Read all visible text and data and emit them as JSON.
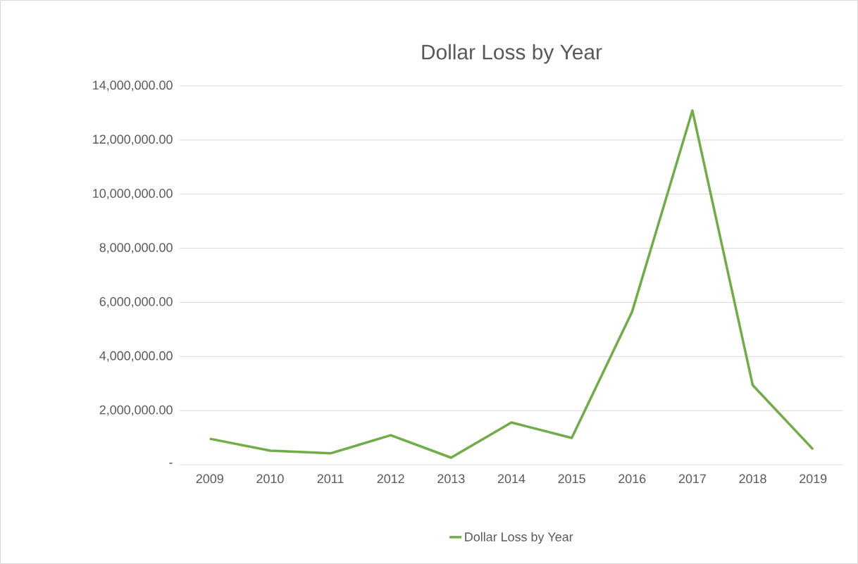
{
  "chart_data": {
    "type": "line",
    "title": "Dollar Loss by Year",
    "categories": [
      "2009",
      "2010",
      "2011",
      "2012",
      "2013",
      "2014",
      "2015",
      "2016",
      "2017",
      "2018",
      "2019"
    ],
    "series": [
      {
        "name": "Dollar Loss by Year",
        "color": "#70ad47",
        "values": [
          960000,
          520000,
          420000,
          1090000,
          260000,
          1560000,
          990000,
          5650000,
          13090000,
          2940000,
          570000
        ]
      }
    ],
    "ylim": [
      0,
      14000000
    ],
    "yticks": [
      {
        "value": 0,
        "label": "-"
      },
      {
        "value": 2000000,
        "label": "2,000,000.00"
      },
      {
        "value": 4000000,
        "label": "4,000,000.00"
      },
      {
        "value": 6000000,
        "label": "6,000,000.00"
      },
      {
        "value": 8000000,
        "label": "8,000,000.00"
      },
      {
        "value": 10000000,
        "label": "10,000,000.00"
      },
      {
        "value": 12000000,
        "label": "12,000,000.00"
      },
      {
        "value": 14000000,
        "label": "14,000,000.00"
      }
    ],
    "grid": "y",
    "legend": "bottom",
    "marker": "none",
    "line_style": "solid"
  }
}
